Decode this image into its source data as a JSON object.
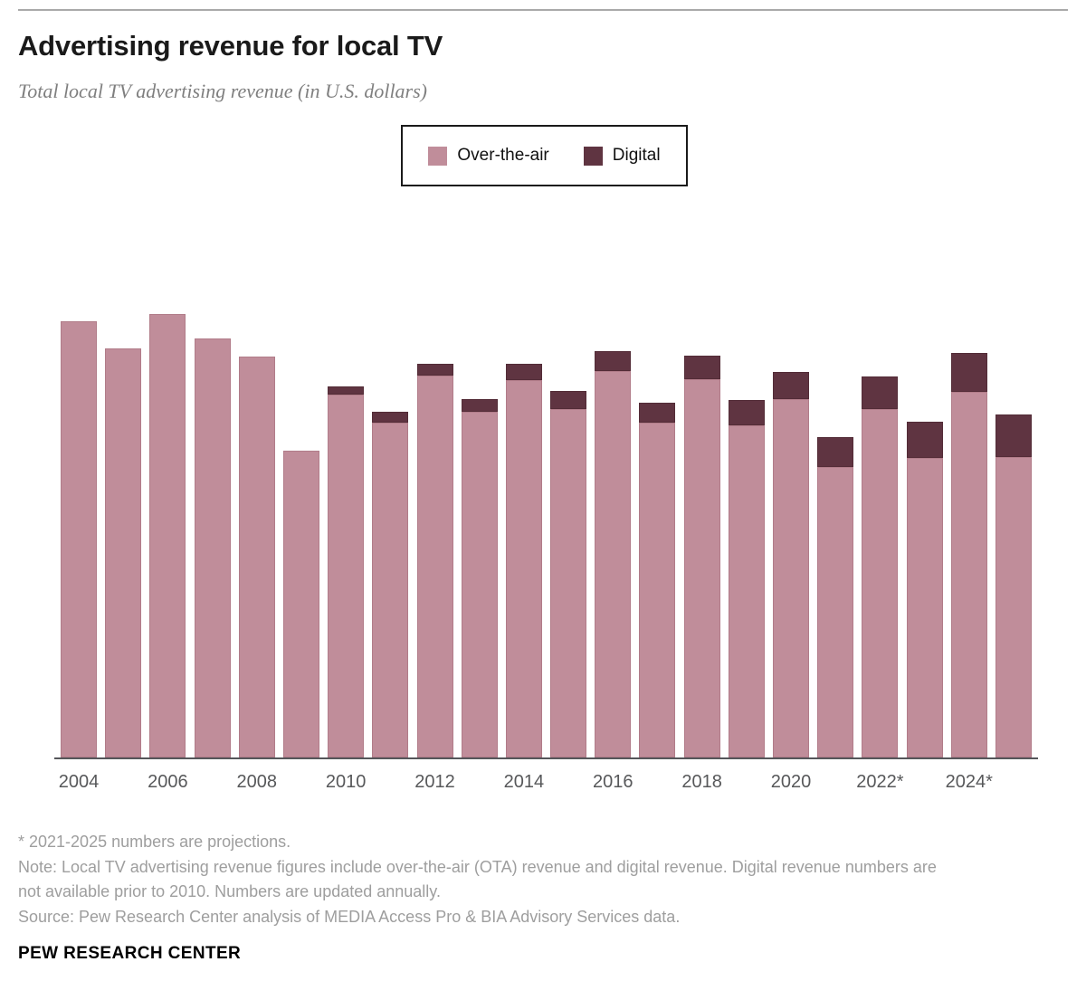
{
  "header": {
    "title": "Advertising revenue for local TV",
    "subtitle": "Total local TV advertising revenue (in U.S. dollars)"
  },
  "legend": {
    "items": [
      {
        "label": "Over-the-air",
        "color": "#c08d9a"
      },
      {
        "label": "Digital",
        "color": "#5f3441"
      }
    ]
  },
  "chart_data": {
    "type": "bar",
    "stacked": true,
    "title": "Advertising revenue for local TV",
    "subtitle": "Total local TV advertising revenue (in U.S. dollars)",
    "xlabel": "",
    "ylabel": "",
    "y_axis": "none shown; values below are relative bar heights measured in screen pixels from the zero baseline",
    "legend_position": "top",
    "x": [
      2004,
      2005,
      2006,
      2007,
      2008,
      2009,
      2010,
      2011,
      2012,
      2013,
      2014,
      2015,
      2016,
      2017,
      2018,
      2019,
      2020,
      2021,
      2022,
      2023,
      2024,
      2025
    ],
    "x_tick_labels": [
      "2004",
      "2006",
      "2008",
      "2010",
      "2012",
      "2014",
      "2016",
      "2018",
      "2020",
      "2022*",
      "2024*"
    ],
    "series": [
      {
        "name": "Over-the-air",
        "color": "#c08d9a",
        "values": [
          482,
          452,
          490,
          463,
          443,
          339,
          401,
          370,
          422,
          382,
          417,
          385,
          427,
          370,
          418,
          367,
          396,
          321,
          385,
          331,
          404,
          332
        ]
      },
      {
        "name": "Digital",
        "color": "#5f3441",
        "values": [
          0,
          0,
          0,
          0,
          0,
          0,
          9,
          12,
          13,
          14,
          18,
          20,
          22,
          22,
          26,
          28,
          30,
          33,
          36,
          40,
          43,
          47
        ]
      }
    ]
  },
  "footer": {
    "footnote": "* 2021-2025 numbers are projections.",
    "note_lines": [
      "Note: Local TV advertising revenue figures include over-the-air (OTA) revenue and digital revenue. Digital revenue numbers are",
      "not available prior to 2010. Numbers are updated annually."
    ],
    "source": "Source: Pew Research Center analysis of MEDIA Access Pro & BIA Advisory Services data.",
    "brand": "PEW RESEARCH CENTER"
  }
}
